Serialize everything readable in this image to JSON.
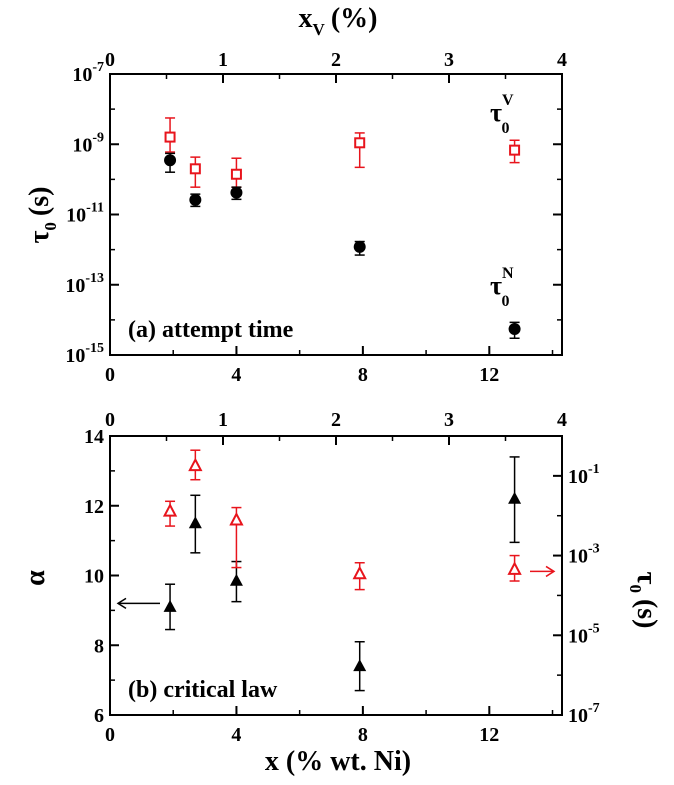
{
  "chart_data": [
    {
      "panel": "a",
      "type": "scatter",
      "annotation": "(a) attempt time",
      "xlabel": "",
      "ylabel": "τ0 (s)",
      "ylabel_main": "τ",
      "ylabel_sub": "0",
      "ylabel_unit": "(s)",
      "top_axis_label": "x",
      "top_axis_label_sub": "V",
      "top_axis_label_unit": "(%)",
      "xlim": [
        0,
        14.3
      ],
      "top_xlim": [
        0,
        4
      ],
      "ylim": [
        1e-15,
        1e-07
      ],
      "yscale": "log",
      "x_ticks": [
        "0",
        "4",
        "8",
        "12"
      ],
      "top_x_ticks": [
        "0",
        "1",
        "2",
        "3",
        "4"
      ],
      "y_ticks": [
        {
          "base": "10",
          "exp": "-15"
        },
        {
          "base": "10",
          "exp": "-13"
        },
        {
          "base": "10",
          "exp": "-11"
        },
        {
          "base": "10",
          "exp": "-9"
        },
        {
          "base": "10",
          "exp": "-7"
        }
      ],
      "series": [
        {
          "marker": "open-square",
          "color": "#e8141c",
          "x": [
            1.9,
            2.7,
            4.0,
            7.9,
            12.8
          ],
          "y": [
            1.6e-09,
            2e-10,
            1.4e-10,
            1.1e-09,
            6.8e-10
          ],
          "err_low": [
            1e-09,
            1.4e-10,
            8e-11,
            8.8e-10,
            3.8e-10
          ],
          "err_high": [
            4e-09,
            2.3e-10,
            2.6e-10,
            1e-09,
            6.2e-10
          ]
        },
        {
          "marker": "filled-circle",
          "color": "#000000",
          "x": [
            1.9,
            2.7,
            4.0,
            7.9,
            12.8
          ],
          "y": [
            3.5e-10,
            2.6e-11,
            4.2e-11,
            1.2e-12,
            5.5e-15
          ],
          "err_low": [
            1.9e-10,
            9e-12,
            1.5e-11,
            5e-13,
            2.5e-15
          ],
          "err_high": [
            2e-10,
            1.2e-11,
            1.8e-11,
            5e-13,
            3e-15
          ]
        }
      ],
      "labels": [
        {
          "main": "τ",
          "sub": "0",
          "sup": "V"
        },
        {
          "main": "τ",
          "sub": "0",
          "sup": "N"
        }
      ]
    },
    {
      "panel": "b",
      "type": "scatter",
      "annotation": "(b) critical law",
      "xlabel": "x (% wt. Ni)",
      "ylabel": "α",
      "right_ylabel": "τ0 (s)",
      "right_ylabel_main": "τ",
      "right_ylabel_sub": "0",
      "right_ylabel_unit": "(s)",
      "xlim": [
        0,
        14.3
      ],
      "top_xlim": [
        0,
        4
      ],
      "ylim": [
        6,
        14
      ],
      "right_ylim": [
        1e-07,
        1
      ],
      "right_yscale": "log",
      "x_ticks": [
        "0",
        "4",
        "8",
        "12"
      ],
      "top_x_ticks": [
        "0",
        "1",
        "2",
        "3",
        "4"
      ],
      "y_ticks": [
        "6",
        "8",
        "10",
        "12",
        "14"
      ],
      "right_y_ticks": [
        {
          "base": "10",
          "exp": "-7"
        },
        {
          "base": "10",
          "exp": "-5"
        },
        {
          "base": "10",
          "exp": "-3"
        },
        {
          "base": "10",
          "exp": "-1"
        }
      ],
      "series": [
        {
          "marker": "filled-triangle",
          "color": "#000000",
          "axis": "left",
          "x": [
            1.9,
            2.7,
            4.0,
            7.9,
            12.8
          ],
          "y": [
            9.1,
            11.5,
            9.85,
            7.4,
            12.2
          ],
          "err_low": [
            0.65,
            0.85,
            0.6,
            0.7,
            1.25
          ],
          "err_high": [
            0.65,
            0.8,
            0.55,
            0.7,
            1.2
          ]
        },
        {
          "marker": "open-triangle",
          "color": "#e8141c",
          "axis": "right",
          "x": [
            1.9,
            2.7,
            4.0,
            7.9,
            12.8
          ],
          "y": [
            0.013,
            0.18,
            0.0078,
            0.00035,
            0.00045
          ],
          "err_low": [
            0.0075,
            0.1,
            0.0073,
            0.00021,
            0.00022
          ],
          "err_high": [
            0.01,
            0.26,
            0.0082,
            0.00031,
            0.00055
          ]
        }
      ],
      "arrows": [
        {
          "points_to": "left-axis",
          "at_y": 9.2,
          "color": "#000000"
        },
        {
          "points_to": "right-axis",
          "at_y": 0.0004,
          "color": "#e8141c"
        }
      ]
    }
  ]
}
